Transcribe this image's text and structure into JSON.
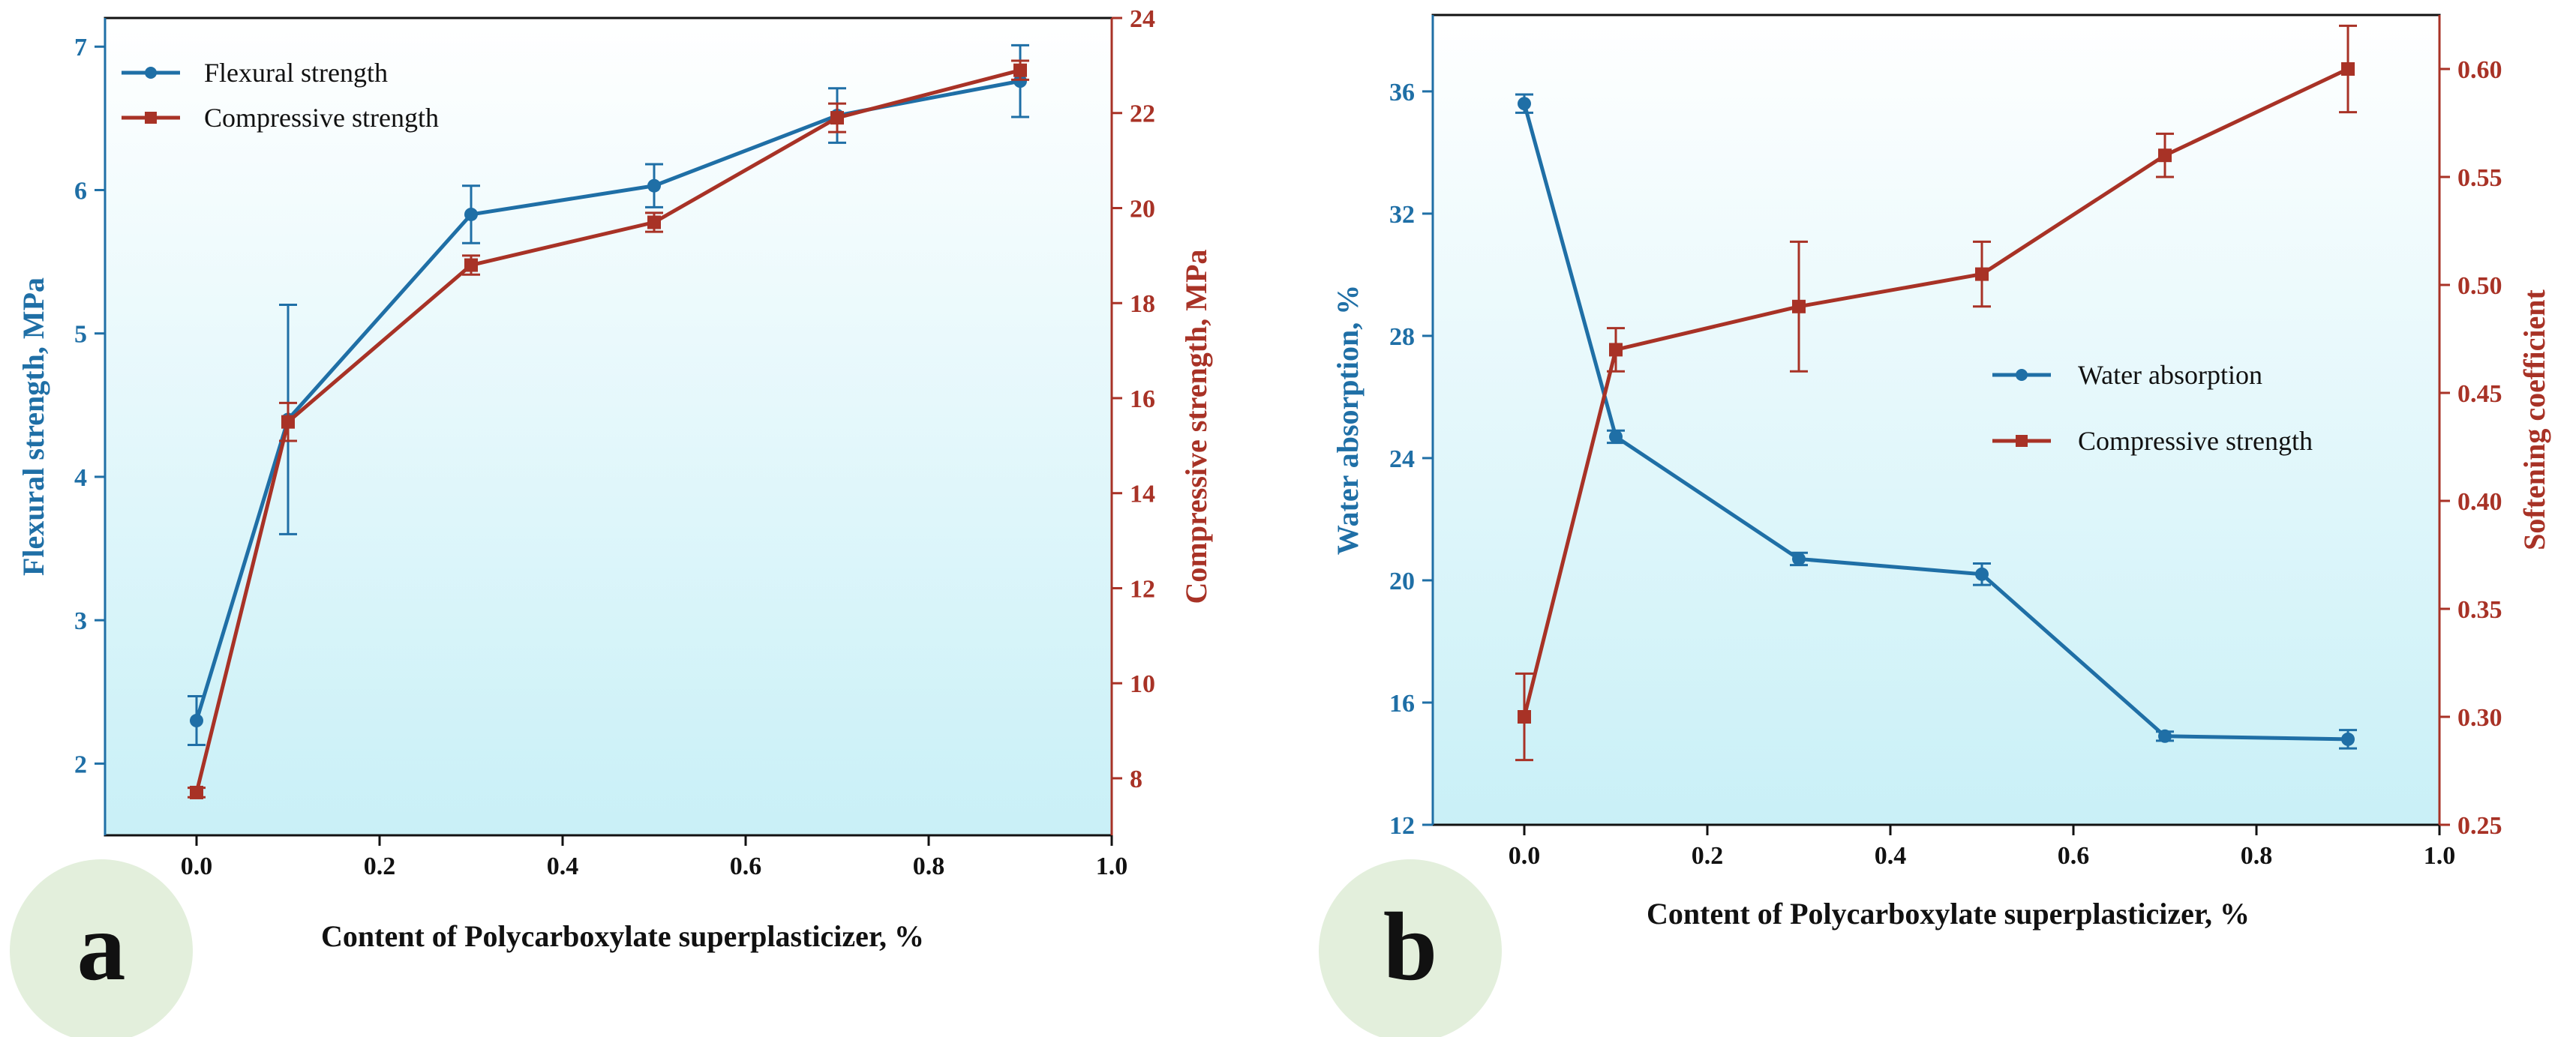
{
  "colors": {
    "blue": "#1f6fa6",
    "red": "#a83226",
    "plot_bg_top": "#ffffff",
    "plot_bg_bottom": "#c9f0f7",
    "badge": "#e3efdc"
  },
  "chart_data": [
    {
      "panel": "a",
      "type": "line",
      "xlabel": "Content of Polycarboxylate superplasticizer, %",
      "xlim": [
        -0.1,
        1.0
      ],
      "xticks": [
        "0.0",
        "0.2",
        "0.4",
        "0.6",
        "0.8",
        "1.0"
      ],
      "x": [
        0.0,
        0.1,
        0.3,
        0.5,
        0.7,
        0.9
      ],
      "left_axis": {
        "label": "Flexural strength, MPa",
        "ylim": [
          1.5,
          7.2
        ],
        "ticks": [
          "2",
          "3",
          "4",
          "5",
          "6",
          "7"
        ]
      },
      "right_axis": {
        "label": "Compressive strength, MPa",
        "ylim": [
          6.8,
          24.0
        ],
        "ticks": [
          "8",
          "10",
          "12",
          "14",
          "16",
          "18",
          "20",
          "22",
          "24"
        ]
      },
      "series": [
        {
          "name": "Flexural strength",
          "axis": "left",
          "marker": "circle",
          "values": [
            2.3,
            4.4,
            5.83,
            6.03,
            6.52,
            6.76
          ],
          "errors": [
            0.17,
            0.8,
            0.2,
            0.15,
            0.19,
            0.25
          ]
        },
        {
          "name": "Compressive strength",
          "axis": "right",
          "marker": "square",
          "values": [
            7.7,
            15.5,
            18.8,
            19.7,
            21.9,
            22.9
          ],
          "errors": [
            0.1,
            0.4,
            0.2,
            0.2,
            0.3,
            0.2
          ]
        }
      ],
      "legend": [
        "Flexural strength",
        "Compressive strength"
      ],
      "panel_label": "a"
    },
    {
      "panel": "b",
      "type": "line",
      "xlabel": "Content of Polycarboxylate superplasticizer, %",
      "xlim": [
        -0.1,
        1.0
      ],
      "xticks": [
        "0.0",
        "0.2",
        "0.4",
        "0.6",
        "0.8",
        "1.0"
      ],
      "x": [
        0.0,
        0.1,
        0.3,
        0.5,
        0.7,
        0.9
      ],
      "left_axis": {
        "label": "Water absorption, %",
        "ylim": [
          12,
          38.5
        ],
        "ticks": [
          "12",
          "16",
          "20",
          "24",
          "28",
          "32",
          "36"
        ]
      },
      "right_axis": {
        "label": "Softening coefficient",
        "ylim": [
          0.25,
          0.625
        ],
        "ticks": [
          "0.25",
          "0.30",
          "0.35",
          "0.40",
          "0.45",
          "0.50",
          "0.55",
          "0.60"
        ]
      },
      "series": [
        {
          "name": "Water absorption",
          "axis": "left",
          "marker": "circle",
          "values": [
            35.6,
            24.7,
            20.7,
            20.2,
            14.9,
            14.8
          ],
          "errors": [
            0.3,
            0.2,
            0.2,
            0.35,
            0.15,
            0.3
          ]
        },
        {
          "name": "Compressive strength",
          "axis": "right",
          "marker": "square",
          "values": [
            0.3,
            0.47,
            0.49,
            0.505,
            0.56,
            0.6
          ],
          "errors": [
            0.02,
            0.01,
            0.03,
            0.015,
            0.01,
            0.02
          ]
        }
      ],
      "legend": [
        "Water absorption",
        "Compressive strength"
      ],
      "panel_label": "b"
    }
  ]
}
